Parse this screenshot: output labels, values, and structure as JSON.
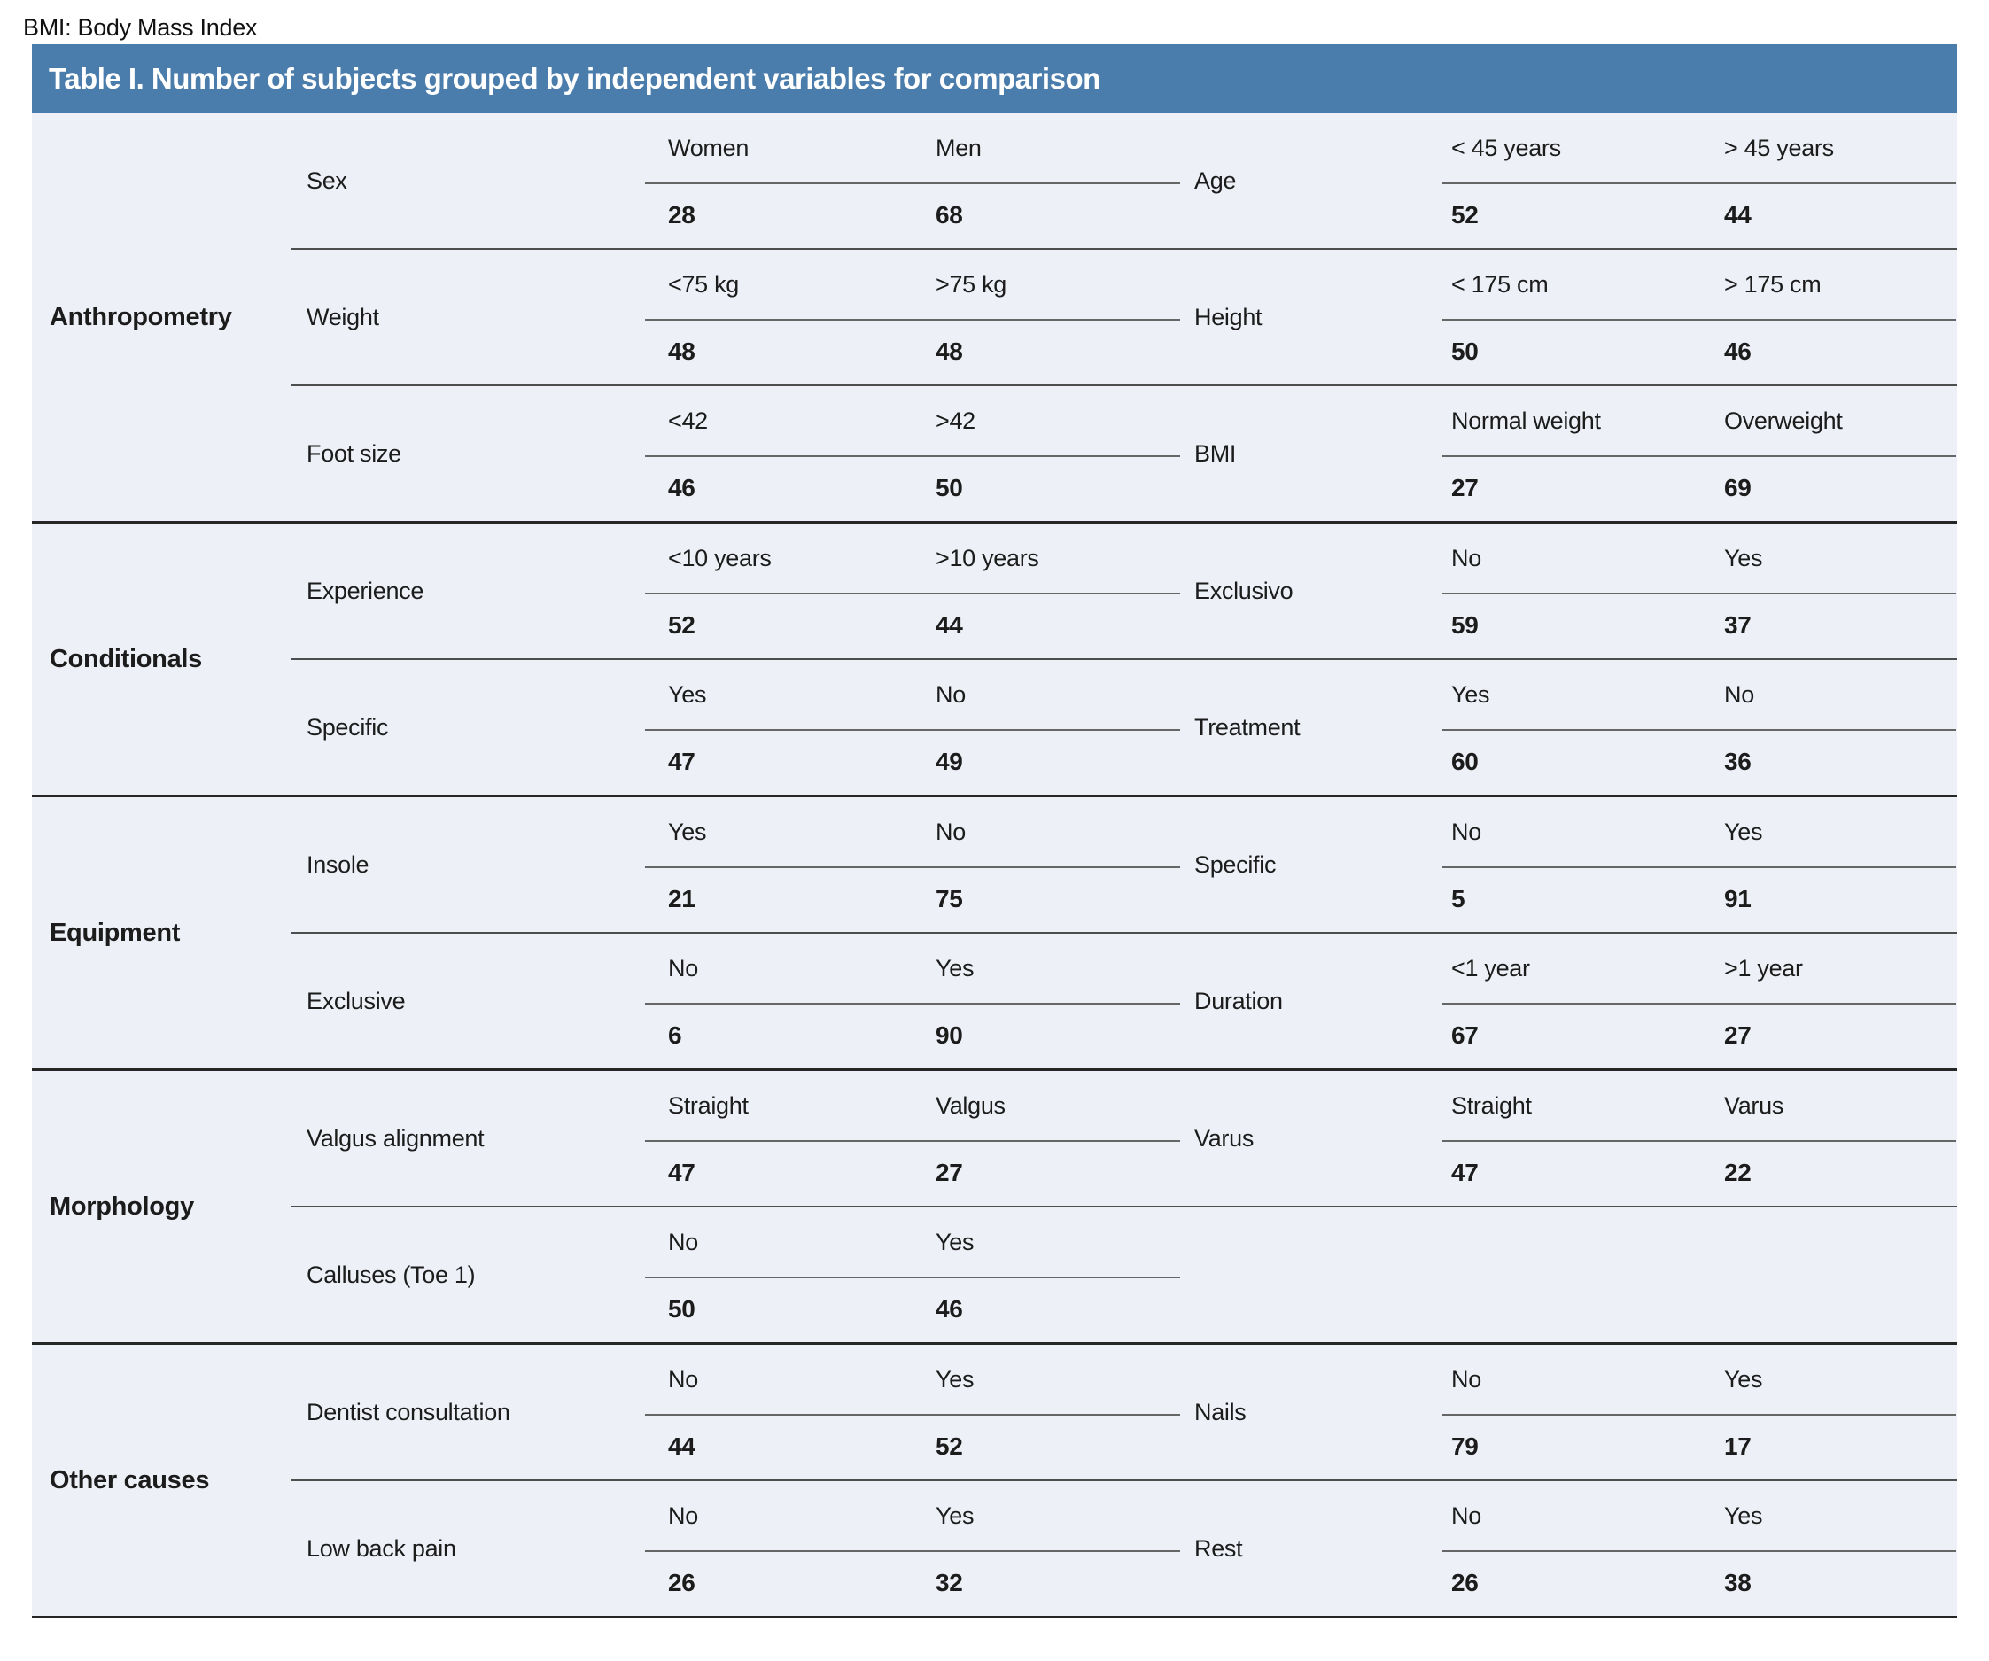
{
  "table": {
    "title": "Table I. Number of subjects grouped by independent variables for comparison",
    "footnote": "BMI: Body Mass Index",
    "colors": {
      "header_bg": "#4b7dac",
      "body_bg": "#edf0f7",
      "group_separator": "#262626",
      "row_separator": "#4e4e4e",
      "label_underline": "#666666"
    },
    "groups": [
      {
        "name": "Anthropometry",
        "rows": [
          {
            "left": {
              "variable": "Sex",
              "labels": [
                "Women",
                "Men"
              ],
              "values": [
                "28",
                "68"
              ]
            },
            "right": {
              "variable": "Age",
              "labels": [
                "< 45 years",
                "> 45 years"
              ],
              "values": [
                "52",
                "44"
              ]
            }
          },
          {
            "left": {
              "variable": "Weight",
              "labels": [
                "<75 kg",
                ">75 kg"
              ],
              "values": [
                "48",
                "48"
              ]
            },
            "right": {
              "variable": "Height",
              "labels": [
                "< 175 cm",
                "> 175 cm"
              ],
              "values": [
                "50",
                "46"
              ]
            }
          },
          {
            "left": {
              "variable": "Foot size",
              "labels": [
                "<42",
                ">42"
              ],
              "values": [
                "46",
                "50"
              ]
            },
            "right": {
              "variable": "BMI",
              "labels": [
                "Normal weight",
                "Overweight"
              ],
              "values": [
                "27",
                "69"
              ]
            }
          }
        ]
      },
      {
        "name": "Conditionals",
        "rows": [
          {
            "left": {
              "variable": "Experience",
              "labels": [
                "<10 years",
                ">10 years"
              ],
              "values": [
                "52",
                "44"
              ]
            },
            "right": {
              "variable": "Exclusivo",
              "labels": [
                "No",
                "Yes"
              ],
              "values": [
                "59",
                "37"
              ]
            }
          },
          {
            "left": {
              "variable": "Specific",
              "labels": [
                "Yes",
                "No"
              ],
              "values": [
                "47",
                "49"
              ]
            },
            "right": {
              "variable": "Treatment",
              "labels": [
                "Yes",
                "No"
              ],
              "values": [
                "60",
                "36"
              ]
            }
          }
        ]
      },
      {
        "name": "Equipment",
        "rows": [
          {
            "left": {
              "variable": "Insole",
              "labels": [
                "Yes",
                "No"
              ],
              "values": [
                "21",
                "75"
              ]
            },
            "right": {
              "variable": "Specific",
              "labels": [
                "No",
                "Yes"
              ],
              "values": [
                "5",
                "91"
              ]
            }
          },
          {
            "left": {
              "variable": "Exclusive",
              "labels": [
                "No",
                "Yes"
              ],
              "values": [
                "6",
                "90"
              ]
            },
            "right": {
              "variable": "Duration",
              "labels": [
                "<1 year",
                ">1 year"
              ],
              "values": [
                "67",
                "27"
              ]
            }
          }
        ]
      },
      {
        "name": "Morphology",
        "rows": [
          {
            "left": {
              "variable": "Valgus alignment",
              "labels": [
                "Straight",
                "Valgus"
              ],
              "values": [
                "47",
                "27"
              ]
            },
            "right": {
              "variable": "Varus",
              "labels": [
                "Straight",
                "Varus"
              ],
              "values": [
                "47",
                "22"
              ]
            }
          },
          {
            "left": {
              "variable": "Calluses (Toe 1)",
              "labels": [
                "No",
                "Yes"
              ],
              "values": [
                "50",
                "46"
              ]
            },
            "right": null
          }
        ]
      },
      {
        "name": "Other causes",
        "rows": [
          {
            "left": {
              "variable": "Dentist consultation",
              "labels": [
                "No",
                "Yes"
              ],
              "values": [
                "44",
                "52"
              ]
            },
            "right": {
              "variable": "Nails",
              "labels": [
                "No",
                "Yes"
              ],
              "values": [
                "79",
                "17"
              ]
            }
          },
          {
            "left": {
              "variable": "Low back pain",
              "labels": [
                "No",
                "Yes"
              ],
              "values": [
                "26",
                "32"
              ]
            },
            "right": {
              "variable": "Rest",
              "labels": [
                "No",
                "Yes"
              ],
              "values": [
                "26",
                "38"
              ]
            }
          }
        ]
      }
    ]
  }
}
